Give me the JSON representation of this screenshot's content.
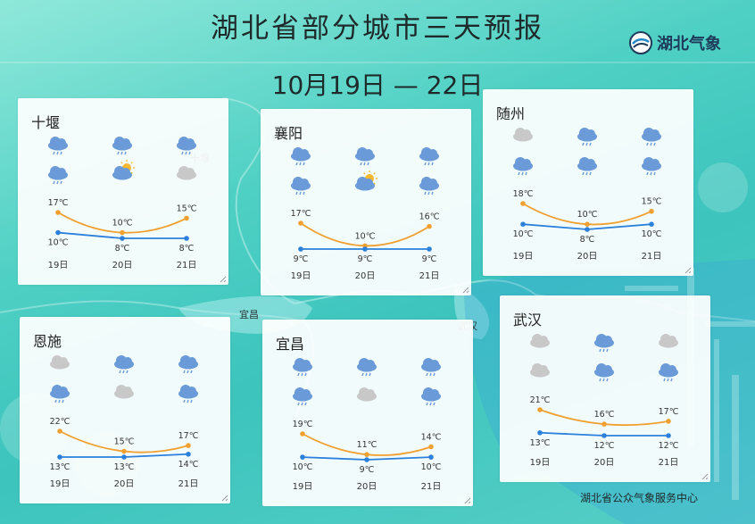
{
  "title": "湖北省部分城市三天预报",
  "date_range": "10月19日 — 22日",
  "logo_text": "湖北气象",
  "footer": "湖北省公众气象服务中心",
  "map_labels": [
    "十堰",
    "宜昌",
    "武汉",
    "恩施",
    "宜昌",
    "汉"
  ],
  "colors": {
    "high": "#f0a030",
    "low": "#2b80dc",
    "cloud": "#c8c8c8",
    "rain_cloud": "#6a9ad8",
    "sun": "#f5b82e"
  },
  "cities": [
    {
      "name": "十堰",
      "days": [
        "19日",
        "20日",
        "21日"
      ],
      "row1": [
        "rain-cloud-icon",
        "rain-cloud-icon",
        "rain-cloud-icon"
      ],
      "row2": [
        "rain-cloud-icon",
        "sun-cloud-icon",
        "cloud-icon"
      ],
      "high": [
        17,
        10,
        15
      ],
      "low": [
        10,
        8,
        8
      ],
      "high_labels": [
        "17℃",
        "10℃",
        "15℃"
      ],
      "low_labels": [
        "10℃",
        "8℃",
        "8℃"
      ]
    },
    {
      "name": "襄阳",
      "days": [
        "19日",
        "20日",
        "21日"
      ],
      "row1": [
        "rain-cloud-icon",
        "rain-cloud-icon",
        "rain-cloud-icon"
      ],
      "row2": [
        "rain-cloud-icon",
        "sun-cloud-icon",
        "rain-cloud-icon"
      ],
      "high": [
        17,
        10,
        16
      ],
      "low": [
        9,
        9,
        9
      ],
      "high_labels": [
        "17℃",
        "10℃",
        "16℃"
      ],
      "low_labels": [
        "9℃",
        "9℃",
        "9℃"
      ]
    },
    {
      "name": "随州",
      "days": [
        "19日",
        "20日",
        "21日"
      ],
      "row1": [
        "cloud-icon",
        "rain-cloud-icon",
        "rain-cloud-icon"
      ],
      "row2": [
        "rain-cloud-icon",
        "rain-cloud-icon",
        "rain-cloud-icon"
      ],
      "high": [
        18,
        10,
        15
      ],
      "low": [
        10,
        8,
        10
      ],
      "high_labels": [
        "18℃",
        "10℃",
        "15℃"
      ],
      "low_labels": [
        "10℃",
        "8℃",
        "10℃"
      ]
    },
    {
      "name": "恩施",
      "days": [
        "19日",
        "20日",
        "21日"
      ],
      "row1": [
        "cloud-icon",
        "rain-cloud-icon",
        "rain-cloud-icon"
      ],
      "row2": [
        "rain-cloud-icon",
        "cloud-icon",
        "rain-cloud-icon"
      ],
      "high": [
        22,
        15,
        17
      ],
      "low": [
        13,
        13,
        14
      ],
      "high_labels": [
        "22℃",
        "15℃",
        "17℃"
      ],
      "low_labels": [
        "13℃",
        "13℃",
        "14℃"
      ]
    },
    {
      "name": "宜昌",
      "days": [
        "19日",
        "20日",
        "21日"
      ],
      "row1": [
        "rain-cloud-icon",
        "rain-cloud-icon",
        "rain-cloud-icon"
      ],
      "row2": [
        "rain-cloud-icon",
        "cloud-icon",
        "rain-cloud-icon"
      ],
      "high": [
        19,
        11,
        14
      ],
      "low": [
        10,
        9,
        10
      ],
      "high_labels": [
        "19℃",
        "11℃",
        "14℃"
      ],
      "low_labels": [
        "10℃",
        "9℃",
        "10℃"
      ]
    },
    {
      "name": "武汉",
      "days": [
        "19日",
        "20日",
        "21日"
      ],
      "row1": [
        "cloud-icon",
        "rain-cloud-icon",
        "cloud-icon"
      ],
      "row2": [
        "cloud-icon",
        "rain-cloud-icon",
        "rain-cloud-icon"
      ],
      "high": [
        21,
        16,
        17
      ],
      "low": [
        13,
        12,
        12
      ],
      "high_labels": [
        "21℃",
        "16℃",
        "17℃"
      ],
      "low_labels": [
        "13℃",
        "12℃",
        "12℃"
      ]
    }
  ]
}
